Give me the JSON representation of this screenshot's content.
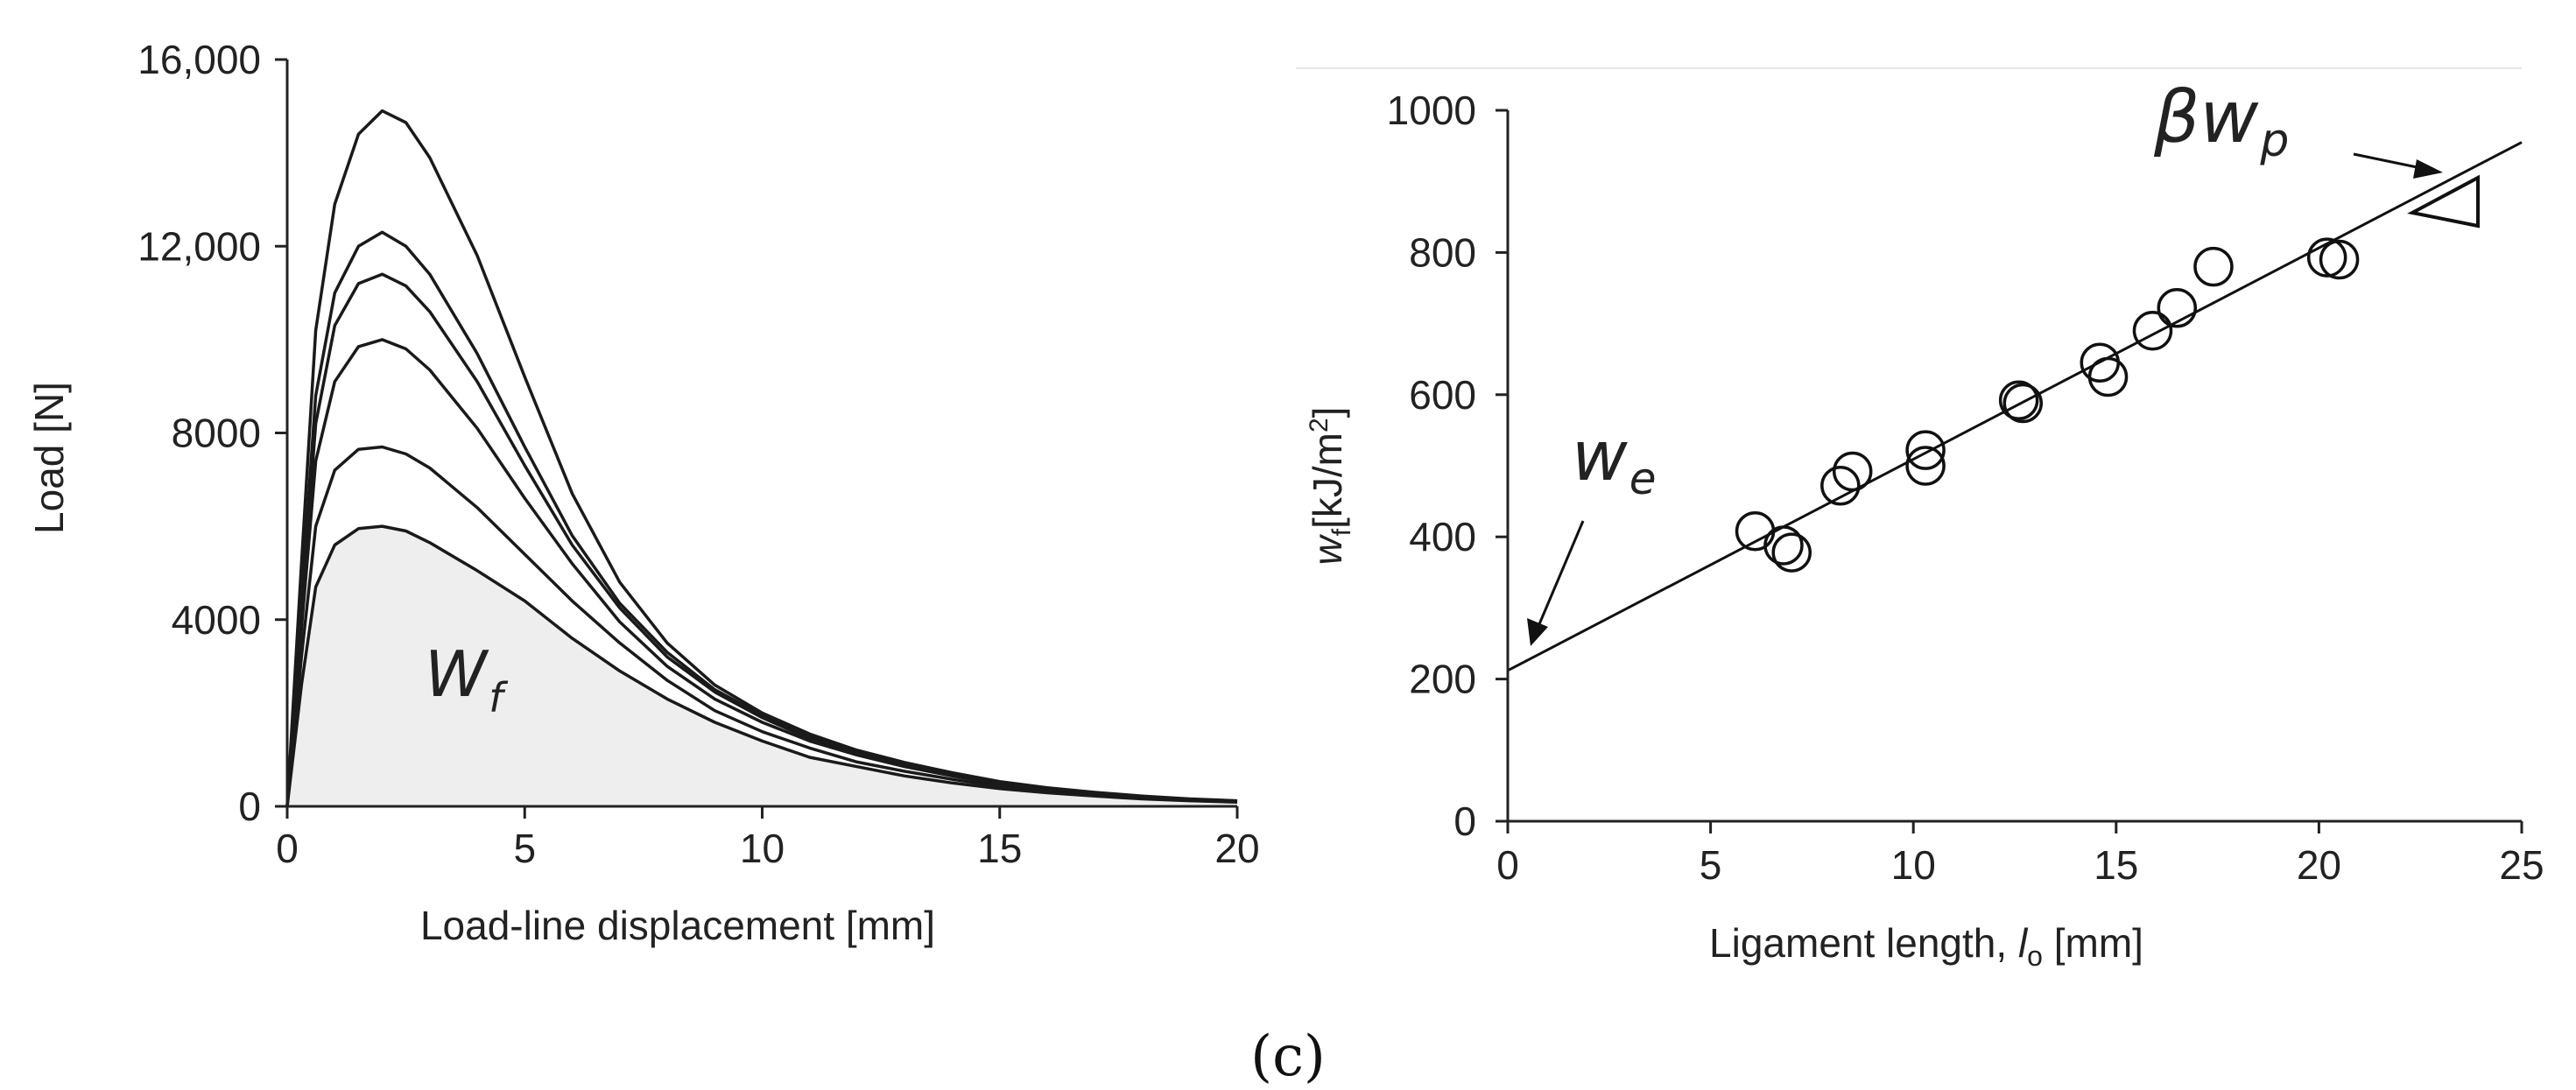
{
  "caption": "(c)",
  "chart_data": [
    {
      "type": "line",
      "xlabel": "Load-line displacement [mm]",
      "ylabel": "Load  [N]",
      "xlim": [
        0,
        20
      ],
      "ylim": [
        0,
        16000
      ],
      "xticks": [
        0,
        5,
        10,
        15,
        20
      ],
      "yticks": [
        0,
        4000,
        8000,
        12000,
        16000
      ],
      "ytick_labels": [
        "0",
        "4000",
        "8000",
        "12,000",
        "16,000"
      ],
      "grid": false,
      "annotation": {
        "base": "W",
        "sub": "f"
      },
      "shaded_area_under": "lowest curve",
      "series": [
        {
          "name": "curve-1",
          "x": [
            0,
            0.3,
            0.6,
            1,
            1.5,
            2,
            2.5,
            3,
            4,
            5,
            6,
            7,
            8,
            9,
            10,
            11,
            12,
            13,
            14,
            15,
            16,
            17,
            18,
            19,
            20
          ],
          "y": [
            0,
            2600,
            4700,
            5600,
            5950,
            6000,
            5900,
            5650,
            5050,
            4400,
            3600,
            2900,
            2300,
            1800,
            1400,
            1050,
            850,
            650,
            500,
            380,
            290,
            220,
            160,
            120,
            90
          ]
        },
        {
          "name": "curve-2",
          "x": [
            0,
            0.3,
            0.6,
            1,
            1.5,
            2,
            2.5,
            3,
            4,
            5,
            6,
            7,
            8,
            9,
            10,
            11,
            12,
            13,
            14,
            15,
            16,
            17,
            18,
            19,
            20
          ],
          "y": [
            0,
            3200,
            6000,
            7200,
            7650,
            7700,
            7550,
            7250,
            6400,
            5400,
            4400,
            3500,
            2700,
            2050,
            1600,
            1250,
            950,
            750,
            580,
            430,
            330,
            250,
            180,
            130,
            100
          ]
        },
        {
          "name": "curve-3",
          "x": [
            0,
            0.3,
            0.6,
            1,
            1.5,
            2,
            2.5,
            3,
            4,
            5,
            6,
            7,
            8,
            9,
            10,
            11,
            12,
            13,
            14,
            15,
            16,
            17,
            18,
            19,
            20
          ],
          "y": [
            0,
            3800,
            7400,
            9100,
            9850,
            10000,
            9800,
            9350,
            8100,
            6600,
            5200,
            3950,
            3000,
            2300,
            1800,
            1400,
            1100,
            850,
            650,
            480,
            360,
            270,
            200,
            140,
            100
          ]
        },
        {
          "name": "curve-4",
          "x": [
            0,
            0.3,
            0.6,
            1,
            1.5,
            2,
            2.5,
            3,
            4,
            5,
            6,
            7,
            8,
            9,
            10,
            11,
            12,
            13,
            14,
            15,
            16,
            17,
            18,
            19,
            20
          ],
          "y": [
            0,
            4200,
            8200,
            10300,
            11200,
            11400,
            11150,
            10600,
            9100,
            7300,
            5600,
            4250,
            3200,
            2450,
            1900,
            1450,
            1150,
            880,
            680,
            500,
            380,
            280,
            200,
            150,
            110
          ]
        },
        {
          "name": "curve-5",
          "x": [
            0,
            0.3,
            0.6,
            1,
            1.5,
            2,
            2.5,
            3,
            4,
            5,
            6,
            7,
            8,
            9,
            10,
            11,
            12,
            13,
            14,
            15,
            16,
            17,
            18,
            19,
            20
          ],
          "y": [
            0,
            4500,
            8800,
            11000,
            12000,
            12300,
            12000,
            11400,
            9700,
            7700,
            5800,
            4350,
            3300,
            2500,
            1950,
            1500,
            1200,
            920,
            700,
            520,
            390,
            290,
            210,
            150,
            110
          ]
        },
        {
          "name": "curve-6",
          "x": [
            0,
            0.3,
            0.6,
            1,
            1.5,
            2,
            2.5,
            3,
            4,
            5,
            6,
            7,
            8,
            9,
            10,
            11,
            12,
            13,
            14,
            15,
            16,
            17,
            18,
            19,
            20
          ],
          "y": [
            0,
            5200,
            10200,
            12900,
            14400,
            14900,
            14650,
            13900,
            11800,
            9200,
            6700,
            4800,
            3500,
            2600,
            2000,
            1550,
            1200,
            940,
            720,
            530,
            400,
            300,
            220,
            160,
            120
          ]
        }
      ]
    },
    {
      "type": "scatter",
      "xlabel_main": "Ligament length, ",
      "xlabel_symbol": "l",
      "xlabel_sub": "o",
      "xlabel_unit": " [mm]",
      "ylabel_symbol": "w",
      "ylabel_sub": "f",
      "ylabel_unit": "[kJ/m",
      "ylabel_exp": "2",
      "ylabel_close": "]",
      "xlim": [
        0,
        25
      ],
      "ylim": [
        0,
        1000
      ],
      "xticks": [
        0,
        5,
        10,
        15,
        20,
        25
      ],
      "yticks": [
        0,
        200,
        400,
        600,
        800,
        1000
      ],
      "grid": false,
      "points": [
        [
          6.1,
          408
        ],
        [
          6.8,
          388
        ],
        [
          7.0,
          378
        ],
        [
          8.2,
          472
        ],
        [
          8.5,
          492
        ],
        [
          10.3,
          522
        ],
        [
          10.3,
          500
        ],
        [
          12.6,
          592
        ],
        [
          12.7,
          588
        ],
        [
          14.6,
          645
        ],
        [
          14.8,
          625
        ],
        [
          15.9,
          690
        ],
        [
          16.5,
          722
        ],
        [
          17.4,
          780
        ],
        [
          20.2,
          793
        ],
        [
          20.5,
          790
        ]
      ],
      "fit_line": {
        "x": [
          0,
          25
        ],
        "y": [
          212,
          955
        ]
      },
      "annotations": {
        "intercept": {
          "base": "w",
          "sub": "e"
        },
        "slope": {
          "prefix": "β",
          "base": "w",
          "sub": "p"
        }
      }
    }
  ]
}
